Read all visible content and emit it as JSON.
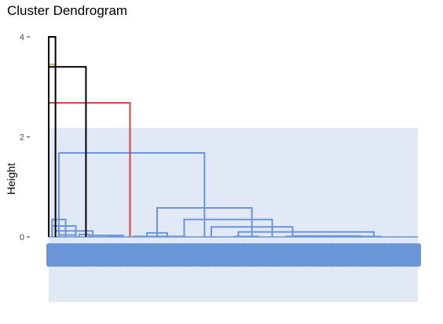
{
  "chart_data": {
    "type": "dendrogram",
    "title": "Cluster Dendrogram",
    "xlabel": "",
    "ylabel": "Height",
    "ylim": [
      -1.3,
      4.2
    ],
    "yticks": [
      0,
      2,
      4
    ],
    "ytick_labels": [
      "0",
      "2",
      "4"
    ],
    "grid": false,
    "highlight_rect": {
      "fill": "#e1e8f6",
      "y_top": 2.18,
      "y_bottom": -1.3
    },
    "leaf_count": 110,
    "leaf_label_color": "#6a96d8",
    "merges": [
      {
        "x": [
          18,
          21
        ],
        "height": 0.01,
        "color": "#6a96d8"
      },
      {
        "x": [
          25,
          40
        ],
        "height": 0.01,
        "color": "#6a96d8"
      },
      {
        "x": [
          55,
          62
        ],
        "height": 0.01,
        "color": "#6a96d8"
      },
      {
        "x": [
          70,
          80
        ],
        "height": 0.01,
        "color": "#6a96d8"
      },
      {
        "x": [
          88,
          98
        ],
        "height": 0.01,
        "color": "#6a96d8"
      },
      {
        "x": [
          3,
          8
        ],
        "height": 0.04,
        "color": "#6a96d8"
      },
      {
        "x": [
          9,
          12
        ],
        "height": 0.05,
        "color": "#6a96d8"
      },
      {
        "x": [
          12,
          22
        ],
        "height": 0.03,
        "color": "#6a96d8"
      },
      {
        "x": [
          72,
          92
        ],
        "height": 0.02,
        "color": "#6a96d8"
      },
      {
        "x": [
          29,
          35
        ],
        "height": 0.08,
        "color": "#6a96d8"
      },
      {
        "x": [
          2,
          13
        ],
        "height": 0.12,
        "color": "#6a96d8"
      },
      {
        "x": [
          1,
          8
        ],
        "height": 0.22,
        "color": "#6a96d8"
      },
      {
        "x": [
          56,
          96
        ],
        "height": 0.1,
        "color": "#6a96d8"
      },
      {
        "x": [
          48,
          72
        ],
        "height": 0.2,
        "color": "#6a96d8"
      },
      {
        "x": [
          40,
          66
        ],
        "height": 0.35,
        "color": "#6a96d8"
      },
      {
        "x": [
          1,
          5
        ],
        "height": 0.35,
        "color": "#6a96d8"
      },
      {
        "x": [
          32,
          60
        ],
        "height": 0.58,
        "color": "#6a96d8"
      },
      {
        "x": [
          3,
          46
        ],
        "height": 1.68,
        "color": "#6a96d8"
      },
      {
        "x": [
          0,
          24
        ],
        "height": 2.68,
        "color": "#cc4638"
      },
      {
        "x": [
          0,
          11
        ],
        "height": 3.4,
        "color": "#000000"
      },
      {
        "x": [
          0,
          2
        ],
        "height": 3.45,
        "color": "#dcb33a"
      },
      {
        "x": [
          0,
          2
        ],
        "height": 4.0,
        "color": "#000000"
      }
    ],
    "branch_colors": [
      "#6a96d8",
      "#cc4638",
      "#dcb33a",
      "#000000"
    ]
  }
}
